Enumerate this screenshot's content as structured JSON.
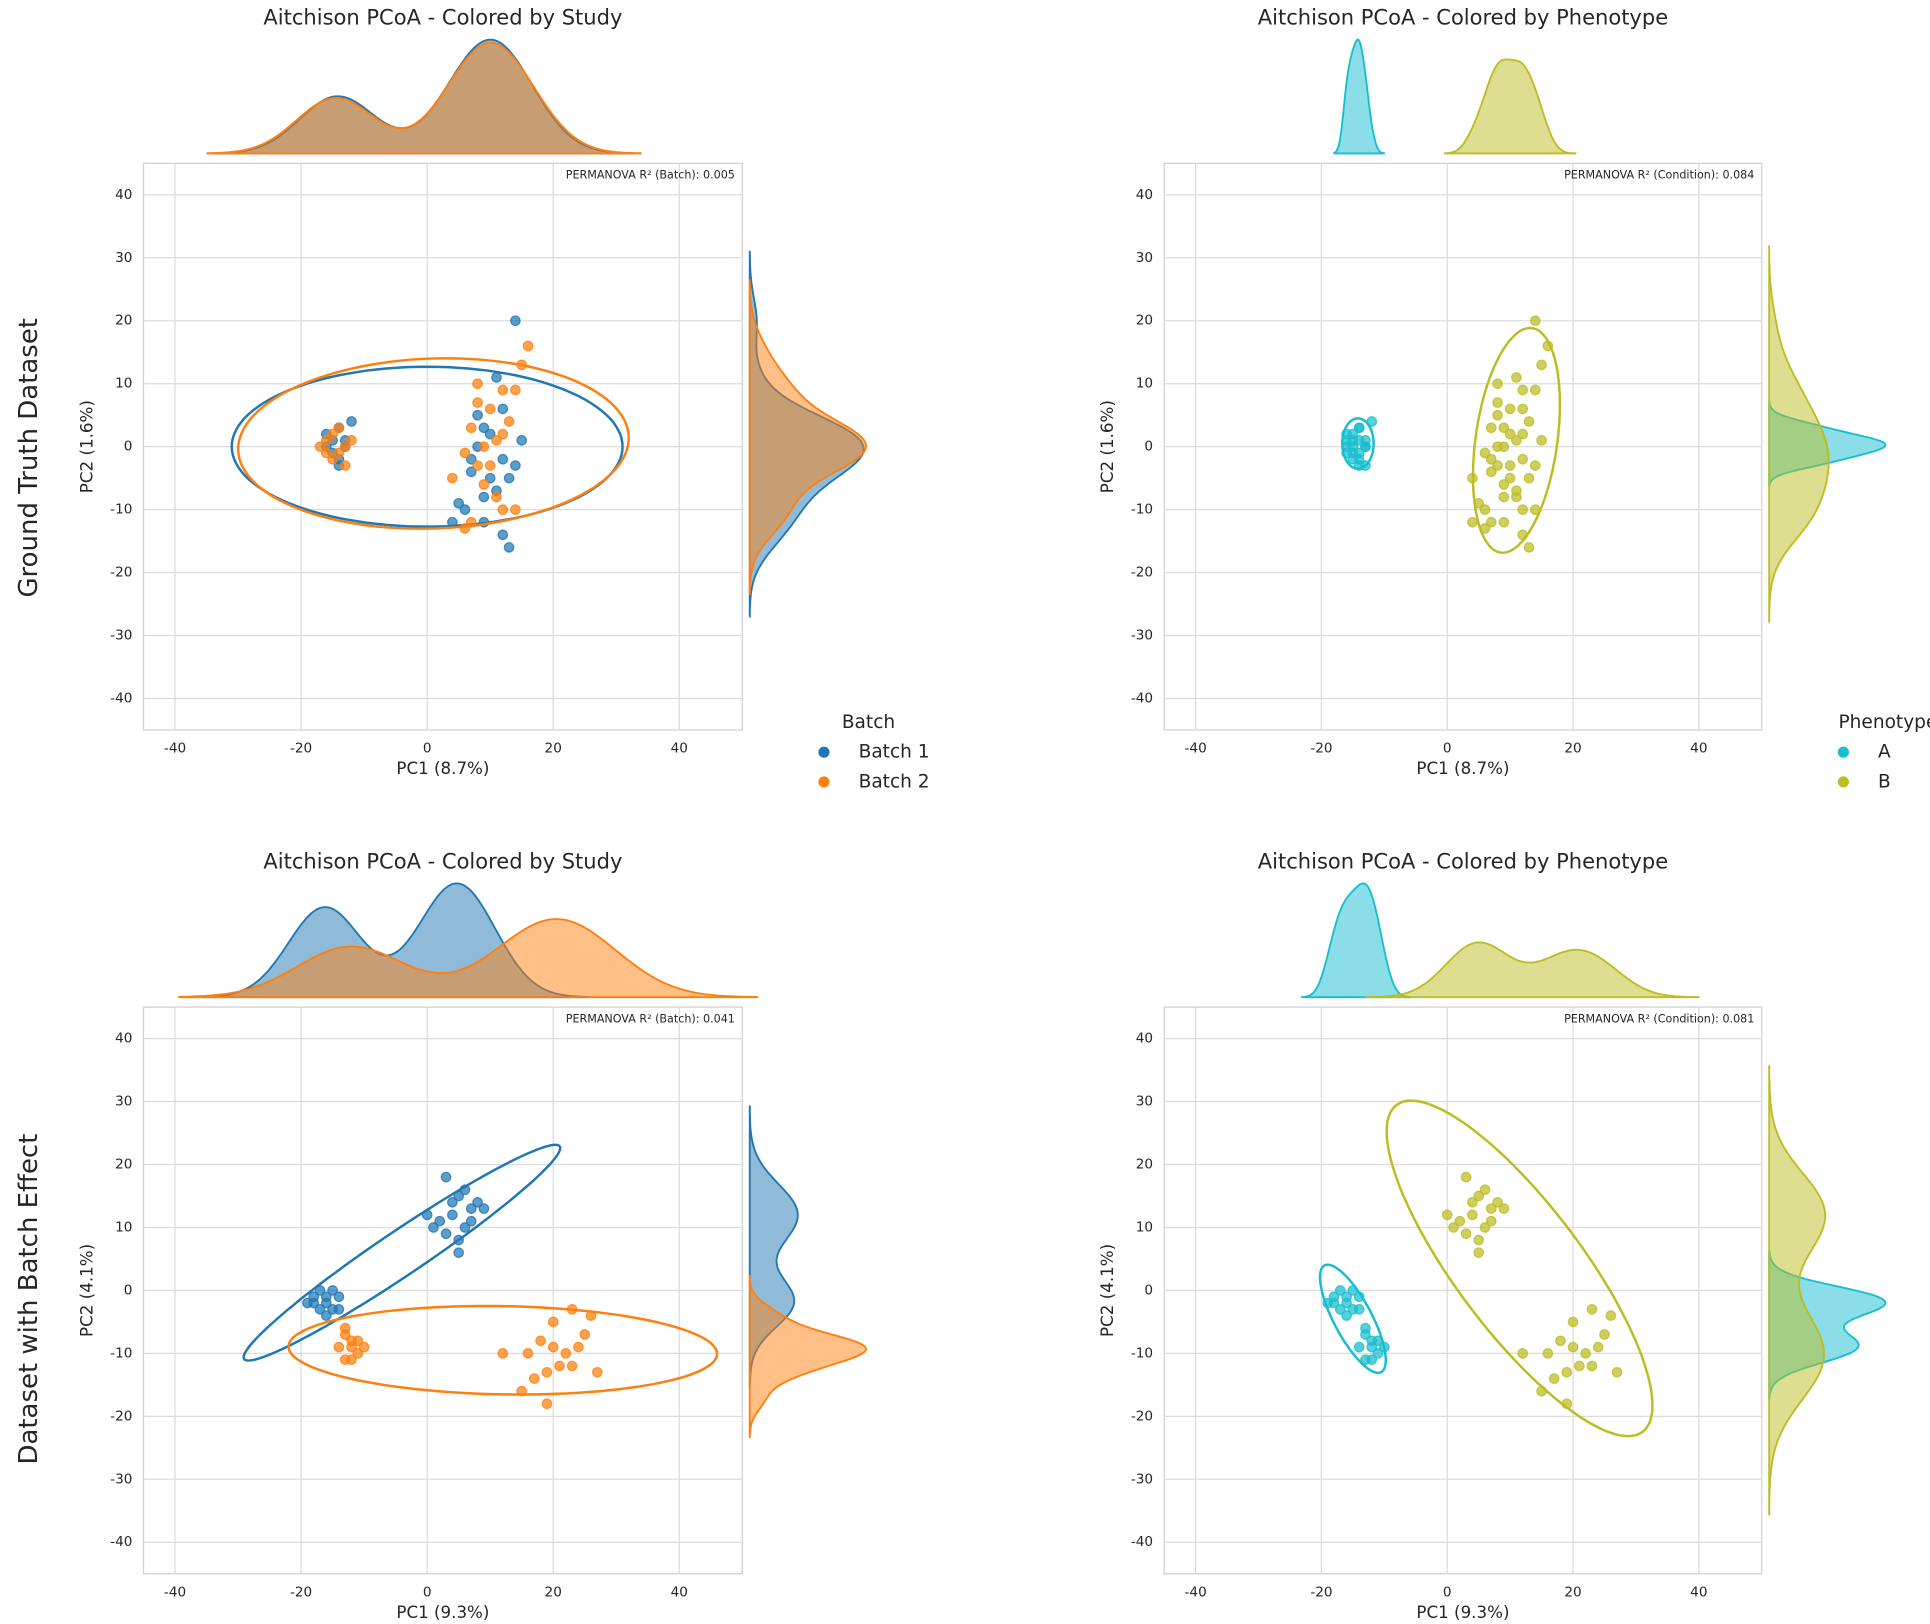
{
  "row_labels": [
    "Ground Truth Dataset",
    "Dataset with Batch Effect"
  ],
  "chart_data": [
    {
      "type": "scatter",
      "title": "Aitchison PCoA - Colored by Study",
      "x_label": "PC1 (8.7%)",
      "y_label": "PC2 (1.6%)",
      "annotation": "PERMANOVA R² (Batch): 0.005",
      "legend_title": "Batch",
      "legend": true,
      "grid": true,
      "xlim": [
        -45,
        50
      ],
      "ylim": [
        -45,
        45
      ],
      "xticks": [
        -40,
        -20,
        0,
        20,
        40
      ],
      "yticks": [
        -40,
        -30,
        -20,
        -10,
        0,
        10,
        20,
        30,
        40
      ],
      "series": [
        {
          "name": "Batch 1",
          "color": "#1f77b4",
          "x": [
            -15,
            -14,
            -13,
            -16,
            -14,
            -12,
            -15,
            -13,
            -14,
            -16,
            14,
            11,
            8,
            10,
            12,
            7,
            9,
            13,
            6,
            12,
            13,
            9,
            10,
            8,
            15,
            7,
            11,
            5,
            4,
            14,
            12,
            9
          ],
          "y": [
            1,
            3,
            0,
            2,
            -2,
            4,
            -1,
            1,
            -3,
            0,
            20,
            11,
            5,
            2,
            -2,
            -4,
            -8,
            -5,
            -10,
            -14,
            -16,
            -12,
            -5,
            0,
            1,
            -2,
            -7,
            -9,
            -12,
            -3,
            6,
            3
          ],
          "ellipse": {
            "cx": 0,
            "cy": 0,
            "rx": 31,
            "ry": 12.7,
            "angle": 0
          }
        },
        {
          "name": "Batch 2",
          "color": "#ff7f0e",
          "x": [
            -17,
            -15,
            -14,
            -13,
            -16,
            -14,
            -15,
            -13,
            -12,
            -16,
            16,
            15,
            12,
            8,
            10,
            14,
            7,
            11,
            8,
            9,
            12,
            14,
            7,
            6,
            4,
            10,
            13,
            9,
            6,
            11,
            8,
            12
          ],
          "y": [
            0,
            2,
            -1,
            -3,
            1,
            3,
            -2,
            0,
            1,
            -1,
            16,
            13,
            9,
            7,
            6,
            9,
            3,
            1,
            -3,
            -6,
            -10,
            -10,
            -12,
            -13,
            -5,
            -3,
            4,
            0,
            -1,
            -8,
            10,
            2
          ],
          "ellipse": {
            "cx": 1,
            "cy": 0.5,
            "rx": 31,
            "ry": 13.5,
            "angle": 2
          }
        }
      ]
    },
    {
      "type": "scatter",
      "title": "Aitchison PCoA - Colored by Phenotype",
      "x_label": "PC1 (8.7%)",
      "y_label": "PC2 (1.6%)",
      "annotation": "PERMANOVA R² (Condition): 0.084",
      "legend_title": "Phenotype",
      "legend": true,
      "grid": true,
      "xlim": [
        -45,
        50
      ],
      "ylim": [
        -45,
        45
      ],
      "xticks": [
        -40,
        -20,
        0,
        20,
        40
      ],
      "yticks": [
        -40,
        -30,
        -20,
        -10,
        0,
        10,
        20,
        30,
        40
      ],
      "series": [
        {
          "name": "A",
          "color": "#17becf",
          "x": [
            -15,
            -14,
            -13,
            -16,
            -14,
            -12,
            -15,
            -13,
            -14,
            -16,
            -15,
            -15,
            -14,
            -13,
            -16,
            -14,
            -15,
            -13,
            -14,
            -16
          ],
          "y": [
            1,
            3,
            0,
            2,
            -2,
            4,
            -1,
            1,
            -3,
            0,
            0,
            2,
            -1,
            -3,
            1,
            3,
            -2,
            0,
            1,
            -1
          ],
          "ellipse": {
            "cx": -14.2,
            "cy": 0.5,
            "rx": 2.5,
            "ry": 4,
            "angle": 0
          }
        },
        {
          "name": "B",
          "color": "#bcbd22",
          "x": [
            14,
            11,
            8,
            10,
            12,
            7,
            9,
            13,
            6,
            12,
            13,
            9,
            10,
            8,
            15,
            7,
            11,
            5,
            4,
            14,
            12,
            9,
            16,
            15,
            12,
            8,
            10,
            14,
            7,
            11,
            8,
            9,
            12,
            14,
            7,
            6,
            4,
            10,
            13,
            9,
            6,
            11,
            8,
            12
          ],
          "y": [
            20,
            11,
            5,
            2,
            -2,
            -4,
            -8,
            -5,
            -10,
            -14,
            -16,
            -12,
            -5,
            0,
            1,
            -2,
            -7,
            -9,
            -12,
            -3,
            6,
            3,
            16,
            13,
            9,
            7,
            6,
            9,
            3,
            1,
            -3,
            -6,
            -10,
            -10,
            -12,
            -13,
            -5,
            -3,
            4,
            0,
            -1,
            -8,
            10,
            2
          ],
          "ellipse": {
            "cx": 11,
            "cy": 1,
            "rx": 6.5,
            "ry": 18,
            "angle": -8
          }
        }
      ]
    },
    {
      "type": "scatter",
      "title": "Aitchison PCoA - Colored by Study",
      "x_label": "PC1 (9.3%)",
      "y_label": "PC2 (4.1%)",
      "annotation": "PERMANOVA R² (Batch): 0.041",
      "legend": false,
      "grid": true,
      "xlim": [
        -45,
        50
      ],
      "ylim": [
        -45,
        45
      ],
      "xticks": [
        -40,
        -20,
        0,
        20,
        40
      ],
      "yticks": [
        -40,
        -30,
        -20,
        -10,
        0,
        10,
        20,
        30,
        40
      ],
      "series": [
        {
          "name": "Batch 1",
          "color": "#1f77b4",
          "x": [
            -18,
            -17,
            -16,
            -15,
            -19,
            -16,
            -14,
            -17,
            -15,
            -18,
            -16,
            -14,
            3,
            5,
            4,
            6,
            2,
            7,
            5,
            8,
            0,
            3,
            6,
            9,
            4,
            5,
            1,
            7
          ],
          "y": [
            -1,
            -3,
            -2,
            0,
            -2,
            -4,
            -1,
            0,
            -3,
            -2,
            -1,
            -3,
            18,
            15,
            12,
            10,
            11,
            13,
            8,
            14,
            12,
            9,
            16,
            13,
            14,
            6,
            10,
            11
          ],
          "ellipse": {
            "cx": -4,
            "cy": 6,
            "rx": 30.2,
            "ry": 3.5,
            "angle": 34
          }
        },
        {
          "name": "Batch 2",
          "color": "#ff7f0e",
          "x": [
            -13,
            -12,
            -11,
            -13,
            -12,
            -14,
            -10,
            -12,
            -13,
            -11,
            23,
            20,
            26,
            18,
            22,
            24,
            16,
            19,
            21,
            17,
            19,
            15,
            25,
            27,
            12,
            23,
            20
          ],
          "y": [
            -7,
            -9,
            -10,
            -11,
            -8,
            -9,
            -9,
            -11,
            -6,
            -8,
            -3,
            -5,
            -4,
            -8,
            -10,
            -9,
            -10,
            -13,
            -12,
            -14,
            -18,
            -16,
            -7,
            -13,
            -10,
            -12,
            -9
          ],
          "ellipse": {
            "cx": 12,
            "cy": -9.5,
            "rx": 34,
            "ry": 7,
            "angle": -1
          }
        }
      ]
    },
    {
      "type": "scatter",
      "title": "Aitchison PCoA - Colored by Phenotype",
      "x_label": "PC1 (9.3%)",
      "y_label": "PC2 (4.1%)",
      "annotation": "PERMANOVA R² (Condition): 0.081",
      "legend": false,
      "grid": true,
      "xlim": [
        -45,
        50
      ],
      "ylim": [
        -45,
        45
      ],
      "xticks": [
        -40,
        -20,
        0,
        20,
        40
      ],
      "yticks": [
        -40,
        -30,
        -20,
        -10,
        0,
        10,
        20,
        30,
        40
      ],
      "series": [
        {
          "name": "A",
          "color": "#17becf",
          "x": [
            -18,
            -17,
            -16,
            -15,
            -19,
            -16,
            -14,
            -17,
            -15,
            -18,
            -16,
            -14,
            -13,
            -12,
            -11,
            -13,
            -12,
            -14,
            -10,
            -12,
            -13,
            -11
          ],
          "y": [
            -1,
            -3,
            -2,
            0,
            -2,
            -4,
            -1,
            0,
            -3,
            -2,
            -1,
            -3,
            -7,
            -9,
            -10,
            -11,
            -8,
            -9,
            -9,
            -11,
            -6,
            -8
          ],
          "ellipse": {
            "cx": -15,
            "cy": -4.5,
            "rx": 9.6,
            "ry": 3,
            "angle": -62
          }
        },
        {
          "name": "B",
          "color": "#bcbd22",
          "x": [
            3,
            5,
            4,
            6,
            2,
            7,
            5,
            8,
            0,
            3,
            6,
            9,
            4,
            5,
            1,
            7,
            23,
            20,
            26,
            18,
            22,
            24,
            16,
            19,
            21,
            17,
            19,
            15,
            25,
            27,
            12,
            23,
            20
          ],
          "y": [
            18,
            15,
            12,
            10,
            11,
            13,
            8,
            14,
            12,
            9,
            16,
            13,
            14,
            6,
            10,
            11,
            -3,
            -5,
            -4,
            -8,
            -10,
            -9,
            -10,
            -13,
            -12,
            -14,
            -18,
            -16,
            -7,
            -13,
            -10,
            -12,
            -9
          ],
          "ellipse": {
            "cx": 11.5,
            "cy": 3.5,
            "rx": 32.5,
            "ry": 10,
            "angle": -53
          }
        }
      ]
    }
  ]
}
